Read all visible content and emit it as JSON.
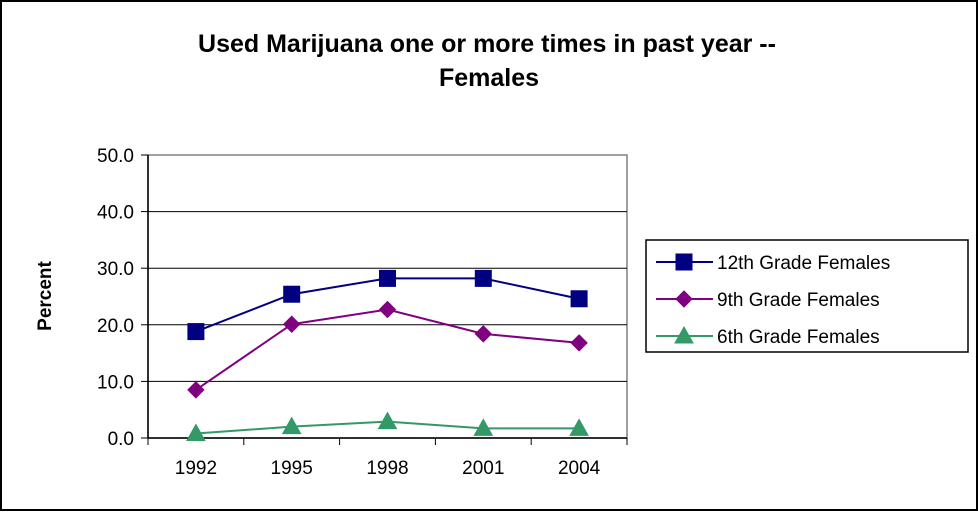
{
  "chart_data": {
    "type": "line",
    "title_lines": [
      "Used Marijuana one or more times in past year --",
      "Females"
    ],
    "xlabel": "",
    "ylabel": "Percent",
    "categories": [
      "1992",
      "1995",
      "1998",
      "2001",
      "2004"
    ],
    "ylim": [
      0,
      50
    ],
    "yticks": [
      "0.0",
      "10.0",
      "20.0",
      "30.0",
      "40.0",
      "50.0"
    ],
    "grid": "horizontal",
    "legend_position": "right",
    "series": [
      {
        "name": "12th Grade Females",
        "values": [
          18.8,
          25.4,
          28.2,
          28.2,
          24.6
        ],
        "color": "#000080",
        "marker": "square"
      },
      {
        "name": "9th Grade Females",
        "values": [
          8.5,
          20.1,
          22.7,
          18.4,
          16.8
        ],
        "color": "#800080",
        "marker": "diamond"
      },
      {
        "name": "6th Grade Females",
        "values": [
          0.8,
          2.0,
          2.9,
          1.7,
          1.7
        ],
        "color": "#339966",
        "marker": "triangle"
      }
    ]
  }
}
